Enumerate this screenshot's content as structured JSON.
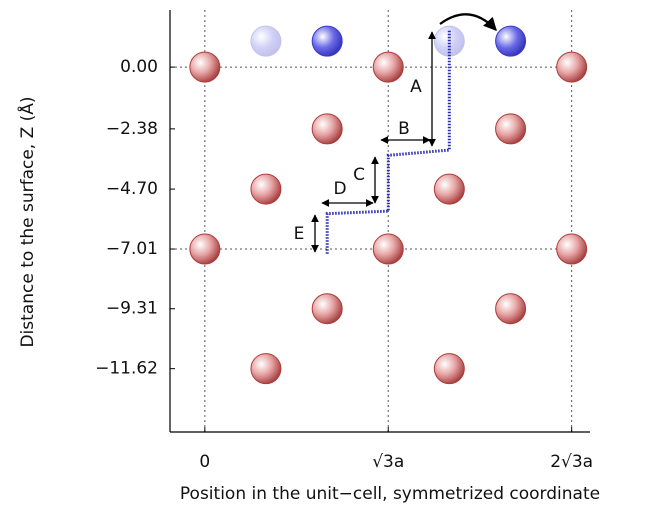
{
  "chart_data": {
    "type": "scatter",
    "xlabel": "Position in the unit−cell, symmetrized coordinate",
    "ylabel": "Distance to the surface, Z (Å)",
    "xlim": [
      -0.19,
      2.1
    ],
    "ylim": [
      -14.06,
      2.2
    ],
    "xticks": [
      0,
      {
        "value": 1,
        "label": "√3a"
      },
      {
        "value": 2,
        "label": "2√3a"
      }
    ],
    "yticks": [
      {
        "value": 0,
        "label": "0.00"
      },
      {
        "value": -2.38,
        "label": "−2.38"
      },
      {
        "value": -4.7,
        "label": "−4.70"
      },
      {
        "value": -7.01,
        "label": "−7.01"
      },
      {
        "value": -9.31,
        "label": "−9.31"
      },
      {
        "value": -11.62,
        "label": "−11.62"
      }
    ],
    "grid": true,
    "series": [
      {
        "type": "scatter",
        "color": "#b03a3a",
        "opacity": 1,
        "x": [
          0,
          1,
          2,
          0.667,
          1.667,
          0.333,
          1.333,
          0,
          1,
          2,
          0.667,
          1.667,
          0.333,
          1.333
        ],
        "y": [
          0,
          0,
          0,
          -2.38,
          -2.38,
          -4.7,
          -4.7,
          -7.01,
          -7.01,
          -7.01,
          -9.31,
          -9.31,
          -11.62,
          -11.62
        ]
      },
      {
        "type": "scatter",
        "color": "#3a3ad0",
        "opacity": 1,
        "x": [
          0.667,
          1.667
        ],
        "y": [
          1.0,
          1.0
        ]
      },
      {
        "type": "scatter",
        "color": "#3a3ad0",
        "opacity": 0.3,
        "x": [
          0.333,
          1.333
        ],
        "y": [
          1.0,
          1.0
        ]
      },
      {
        "type": "line",
        "color": "#2a2ab8",
        "x": [
          1.333,
          1.333,
          1.0,
          1.0,
          0.667,
          0.667
        ],
        "y": [
          1.4,
          -3.2,
          -3.4,
          -5.55,
          -5.65,
          -7.25
        ]
      }
    ],
    "annotations": [
      "A",
      "B",
      "C",
      "D",
      "E"
    ]
  }
}
